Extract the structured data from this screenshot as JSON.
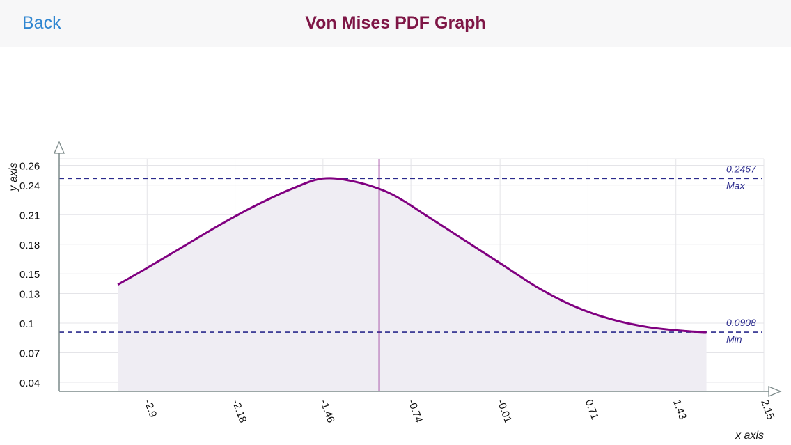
{
  "nav": {
    "back_label": "Back",
    "title": "Von Mises PDF Graph"
  },
  "colors": {
    "accent_link": "#2f86d1",
    "title": "#7e1646",
    "curve": "#800080",
    "reference_lines": "#2a2a8c"
  },
  "chart_data": {
    "type": "area",
    "xlabel": "x axis",
    "ylabel": "y axis",
    "x_ticks": [
      "-2.9",
      "-2.18",
      "-1.46",
      "-0.74",
      "-0.01",
      "0.71",
      "1.43",
      "2.15"
    ],
    "y_ticks": [
      "0.04",
      "0.07",
      "0.1",
      "0.13",
      "0.15",
      "0.18",
      "0.21",
      "0.24",
      "0.26"
    ],
    "xlim": [
      -3.62,
      2.15
    ],
    "ylim": [
      0.0308,
      0.2667
    ],
    "grid": true,
    "series": [
      {
        "x": [
          -3.14,
          -2.9,
          -2.6,
          -2.3,
          -2.0,
          -1.7,
          -1.46,
          -1.2,
          -0.9,
          -0.6,
          -0.3,
          0.0,
          0.3,
          0.6,
          0.9,
          1.2,
          1.5,
          1.68
        ],
        "values": [
          0.139,
          0.156,
          0.178,
          0.2,
          0.22,
          0.237,
          0.2467,
          0.2435,
          0.231,
          0.208,
          0.184,
          0.16,
          0.136,
          0.117,
          0.104,
          0.096,
          0.092,
          0.0908
        ]
      }
    ],
    "reference_lines": [
      {
        "y": 0.2467,
        "value_label": "0.2467",
        "label": "Max"
      },
      {
        "y": 0.0908,
        "value_label": "0.0908",
        "label": "Min"
      }
    ],
    "cursor_x": -1.0
  }
}
